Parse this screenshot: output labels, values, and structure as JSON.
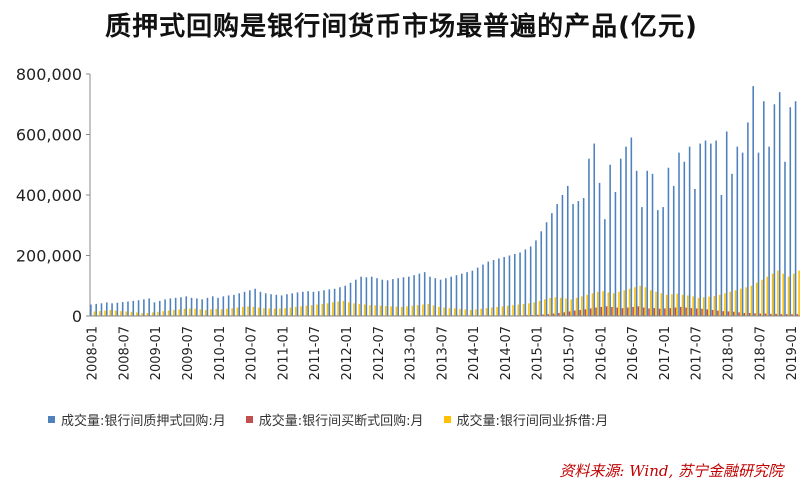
{
  "title": "质押式回购是银行间货币市场最普遍的产品(亿元)",
  "source": "资料来源: Wind, 苏宁金融研究院",
  "chart_data": {
    "type": "bar",
    "ylim": [
      0,
      800000
    ],
    "yticks": [
      "0",
      "200,000",
      "400,000",
      "600,000",
      "800,000"
    ],
    "ytick_values": [
      0,
      200000,
      400000,
      600000,
      800000
    ],
    "xtick_labels": [
      "2008-01",
      "2008-07",
      "2009-01",
      "2009-07",
      "2010-01",
      "2010-07",
      "2011-01",
      "2011-07",
      "2012-01",
      "2012-07",
      "2013-01",
      "2013-07",
      "2014-01",
      "2014-07",
      "2015-01",
      "2015-07",
      "2016-01",
      "2016-07",
      "2017-01",
      "2017-07",
      "2018-01",
      "2018-07",
      "2019-01"
    ],
    "grid": "none",
    "legend_position": "bottom",
    "series": [
      {
        "name": "成交量:银行间质押式回购:月",
        "color": "#4f81bd",
        "values": [
          38000,
          40000,
          42000,
          45000,
          42000,
          44000,
          46000,
          48000,
          50000,
          52000,
          55000,
          58000,
          45000,
          50000,
          55000,
          58000,
          60000,
          62000,
          65000,
          60000,
          58000,
          55000,
          60000,
          65000,
          60000,
          65000,
          68000,
          70000,
          75000,
          80000,
          85000,
          90000,
          80000,
          75000,
          72000,
          70000,
          68000,
          72000,
          75000,
          78000,
          80000,
          82000,
          80000,
          82000,
          85000,
          88000,
          90000,
          95000,
          100000,
          110000,
          120000,
          130000,
          128000,
          130000,
          125000,
          120000,
          118000,
          122000,
          125000,
          128000,
          130000,
          135000,
          140000,
          145000,
          130000,
          125000,
          120000,
          125000,
          130000,
          135000,
          140000,
          145000,
          150000,
          160000,
          170000,
          180000,
          185000,
          190000,
          195000,
          200000,
          205000,
          210000,
          220000,
          230000,
          250000,
          280000,
          310000,
          340000,
          370000,
          400000,
          430000,
          370000,
          380000,
          390000,
          520000,
          570000,
          440000,
          320000,
          500000,
          410000,
          520000,
          560000,
          590000,
          480000,
          360000,
          480000,
          470000,
          350000,
          360000,
          490000,
          430000,
          540000,
          510000,
          560000,
          420000,
          570000,
          580000,
          570000,
          580000,
          400000,
          610000,
          470000,
          560000,
          540000,
          640000,
          760000,
          540000,
          710000,
          560000,
          700000,
          740000,
          510000,
          690000,
          710000
        ]
      },
      {
        "name": "成交量:银行间买断式回购:月",
        "color": "#c0504d",
        "values": [
          2000,
          2000,
          2000,
          2000,
          2000,
          2000,
          2000,
          2000,
          2000,
          2000,
          2000,
          2000,
          2000,
          2000,
          2000,
          2000,
          2000,
          2000,
          2000,
          2000,
          2000,
          2000,
          2000,
          2000,
          2000,
          2000,
          2000,
          2000,
          2000,
          2000,
          2000,
          2000,
          2000,
          2000,
          2000,
          2000,
          2000,
          2000,
          2000,
          2000,
          2000,
          2000,
          2000,
          2000,
          2000,
          2000,
          2000,
          2000,
          2000,
          2000,
          2000,
          2000,
          2000,
          2000,
          2000,
          2000,
          2000,
          2000,
          2000,
          2000,
          2000,
          2000,
          2000,
          2000,
          2000,
          2000,
          2000,
          2000,
          2000,
          2000,
          2000,
          2000,
          2000,
          2000,
          2000,
          2000,
          2000,
          2000,
          2000,
          2000,
          2000,
          2000,
          3000,
          3000,
          4000,
          5000,
          6000,
          8000,
          10000,
          12000,
          15000,
          18000,
          20000,
          22000,
          25000,
          28000,
          30000,
          32000,
          30000,
          28000,
          26000,
          28000,
          30000,
          32000,
          28000,
          25000,
          26000,
          24000,
          25000,
          26000,
          28000,
          30000,
          28000,
          26000,
          25000,
          24000,
          22000,
          20000,
          18000,
          16000,
          15000,
          14000,
          12000,
          10000,
          10000,
          9000,
          8000,
          8000,
          7000,
          7000,
          6000,
          6000,
          6000,
          6000
        ]
      },
      {
        "name": "成交量:银行间同业拆借:月",
        "color": "#ffc000",
        "values": [
          15000,
          16000,
          18000,
          20000,
          18000,
          16000,
          15000,
          14000,
          12000,
          10000,
          10000,
          12000,
          14000,
          16000,
          18000,
          20000,
          22000,
          24000,
          25000,
          24000,
          22000,
          20000,
          22000,
          24000,
          22000,
          24000,
          26000,
          28000,
          30000,
          32000,
          30000,
          28000,
          26000,
          25000,
          24000,
          25000,
          26000,
          28000,
          30000,
          32000,
          34000,
          36000,
          38000,
          40000,
          42000,
          45000,
          48000,
          50000,
          45000,
          42000,
          40000,
          38000,
          36000,
          35000,
          34000,
          33000,
          32000,
          31000,
          30000,
          32000,
          34000,
          36000,
          38000,
          40000,
          35000,
          30000,
          28000,
          26000,
          25000,
          24000,
          22000,
          20000,
          22000,
          24000,
          26000,
          28000,
          30000,
          32000,
          34000,
          36000,
          38000,
          40000,
          42000,
          45000,
          50000,
          55000,
          60000,
          62000,
          60000,
          58000,
          55000,
          60000,
          65000,
          70000,
          75000,
          80000,
          82000,
          78000,
          75000,
          80000,
          85000,
          90000,
          95000,
          100000,
          95000,
          85000,
          80000,
          75000,
          70000,
          72000,
          74000,
          70000,
          68000,
          65000,
          60000,
          62000,
          64000,
          66000,
          70000,
          75000,
          80000,
          85000,
          90000,
          95000,
          100000,
          110000,
          120000,
          130000,
          140000,
          150000,
          140000,
          130000,
          140000,
          150000
        ]
      }
    ]
  }
}
